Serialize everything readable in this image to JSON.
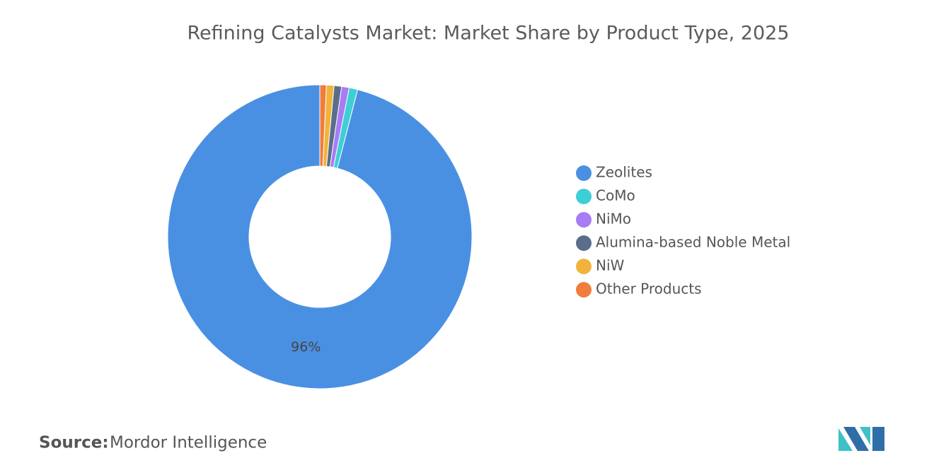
{
  "chart_data": {
    "type": "donut",
    "title": "Refining Catalysts Market: Market Share by Product Type, 2025",
    "categories": [
      "Zeolites",
      "CoMo",
      "NiMo",
      "Alumina-based Noble Metal",
      "NiW",
      "Other Products"
    ],
    "values": [
      96,
      0.9,
      0.8,
      0.8,
      0.8,
      0.7
    ],
    "value_labels": [
      "96%",
      null,
      null,
      null,
      null,
      null
    ],
    "colors": [
      "#4a90e2",
      "#3ecfd6",
      "#a77cf5",
      "#5a6e8c",
      "#f0b43c",
      "#f07d3c"
    ],
    "source_label": "Source:",
    "source": "Mordor Intelligence"
  }
}
